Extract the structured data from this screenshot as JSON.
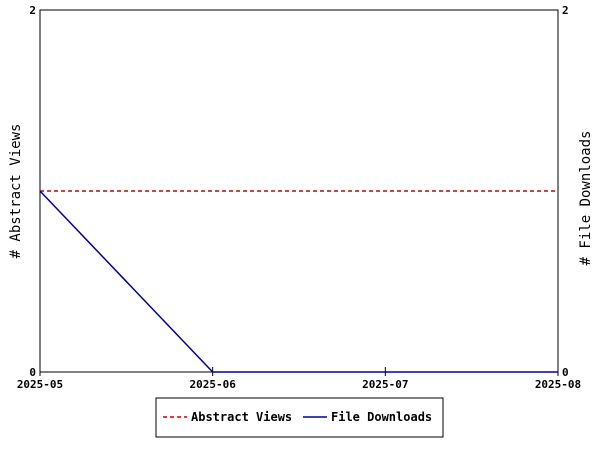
{
  "chart_data": {
    "type": "line",
    "x": [
      "2025-05",
      "2025-06",
      "2025-07",
      "2025-08"
    ],
    "x_tick_labels": [
      "2025-05",
      "2025-06",
      "2025-07",
      "2025-08"
    ],
    "left_axis": {
      "label": "# Abstract Views",
      "ylim": [
        0,
        2
      ],
      "ticks": [
        0,
        2
      ]
    },
    "right_axis": {
      "label": "# File Downloads",
      "ylim": [
        0,
        2
      ],
      "ticks": [
        0,
        2
      ]
    },
    "series": [
      {
        "name": "Abstract Views",
        "axis": "left",
        "values": [
          1,
          1,
          1,
          1
        ],
        "color": "#cc0000",
        "style": "dashed"
      },
      {
        "name": "File Downloads",
        "axis": "right",
        "values": [
          1,
          0,
          0,
          0
        ],
        "color": "#000099",
        "style": "solid"
      }
    ],
    "grid": false,
    "legend_position": "bottom"
  }
}
